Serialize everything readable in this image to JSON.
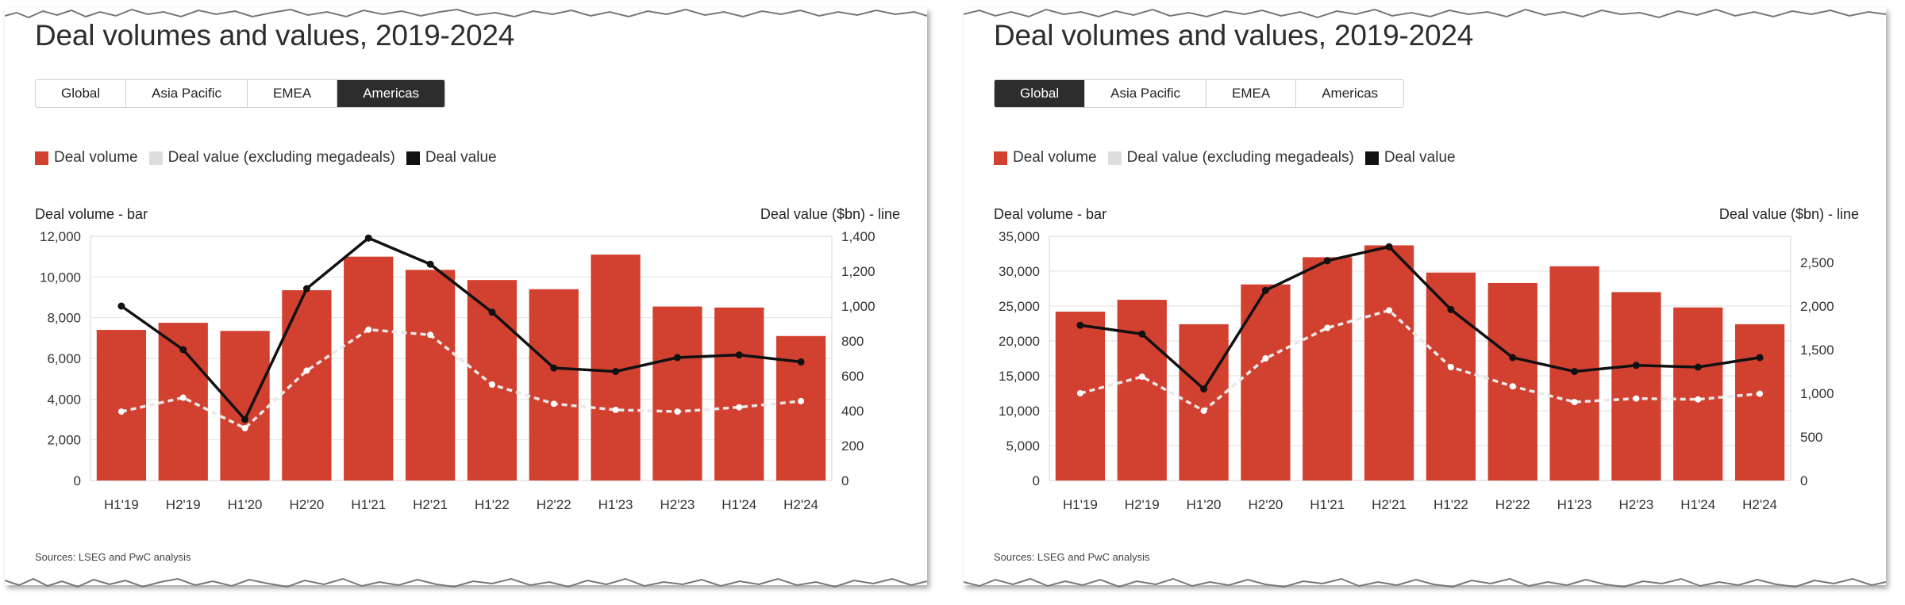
{
  "colors": {
    "bar": "#d24030",
    "line_dark": "#111111",
    "line_light": "#e8e8e8",
    "legend_light": "#dddddd",
    "active_tab": "#2d2d2d"
  },
  "legend": {
    "deal_volume": "Deal volume",
    "deal_value_ex": "Deal value (excluding megadeals)",
    "deal_value": "Deal value"
  },
  "tabs": [
    "Global",
    "Asia Pacific",
    "EMEA",
    "Americas"
  ],
  "panels": [
    {
      "title": "Deal volumes and values, 2019-2024",
      "active_tab": "Americas",
      "left_axis_label": "Deal volume - bar",
      "right_axis_label": "Deal value ($bn) - line",
      "source": "Sources: LSEG and PwC analysis"
    },
    {
      "title": "Deal volumes and values, 2019-2024",
      "active_tab": "Global",
      "left_axis_label": "Deal volume - bar",
      "right_axis_label": "Deal value ($bn) - line",
      "source": "Sources: LSEG and PwC analysis"
    }
  ],
  "chart_data": [
    {
      "type": "bar",
      "title": "Deal volumes and values, 2019-2024",
      "categories": [
        "H1'19",
        "H2'19",
        "H1'20",
        "H2'20",
        "H1'21",
        "H2'21",
        "H1'22",
        "H2'22",
        "H1'23",
        "H2'23",
        "H1'24",
        "H2'24"
      ],
      "ylabel": "Deal volume - bar",
      "y2label": "Deal value ($bn) - line",
      "ylim": [
        0,
        12000
      ],
      "yticks": [
        0,
        2000,
        4000,
        6000,
        8000,
        10000,
        12000
      ],
      "y2lim": [
        0,
        1400
      ],
      "y2ticks": [
        0,
        200,
        400,
        600,
        800,
        1000,
        1200,
        1400
      ],
      "series": [
        {
          "name": "Deal volume",
          "type": "bar",
          "axis": "left",
          "values": [
            7400,
            7750,
            7350,
            9350,
            11000,
            10350,
            9850,
            9400,
            11100,
            8550,
            8500,
            7100
          ]
        },
        {
          "name": "Deal value (excluding megadeals)",
          "type": "line",
          "axis": "right",
          "dashed": true,
          "values": [
            395,
            475,
            300,
            630,
            865,
            835,
            550,
            440,
            405,
            395,
            420,
            455
          ]
        },
        {
          "name": "Deal value",
          "type": "line",
          "axis": "right",
          "values": [
            1000,
            750,
            350,
            1100,
            1390,
            1240,
            965,
            645,
            625,
            705,
            720,
            680
          ]
        }
      ],
      "legend": "top-left",
      "grid": true
    },
    {
      "type": "bar",
      "title": "Deal volumes and values, 2019-2024",
      "categories": [
        "H1'19",
        "H2'19",
        "H1'20",
        "H2'20",
        "H1'21",
        "H2'21",
        "H1'22",
        "H2'22",
        "H1'23",
        "H2'23",
        "H1'24",
        "H2'24"
      ],
      "ylabel": "Deal volume - bar",
      "y2label": "Deal value ($bn) - line",
      "ylim": [
        0,
        35000
      ],
      "yticks": [
        0,
        5000,
        10000,
        15000,
        20000,
        25000,
        30000,
        35000
      ],
      "y2lim": [
        0,
        2800
      ],
      "y2ticks": [
        0,
        500,
        1000,
        1500,
        2000,
        2500
      ],
      "series": [
        {
          "name": "Deal volume",
          "type": "bar",
          "axis": "left",
          "values": [
            24200,
            25900,
            22400,
            28100,
            32000,
            33700,
            29800,
            28300,
            30700,
            27000,
            24800,
            22400
          ]
        },
        {
          "name": "Deal value (excluding megadeals)",
          "type": "line",
          "axis": "right",
          "dashed": true,
          "values": [
            1000,
            1190,
            800,
            1400,
            1750,
            1950,
            1300,
            1080,
            900,
            940,
            930,
            995
          ]
        },
        {
          "name": "Deal value",
          "type": "line",
          "axis": "right",
          "values": [
            1780,
            1680,
            1050,
            2180,
            2520,
            2680,
            1960,
            1410,
            1250,
            1320,
            1300,
            1410
          ]
        }
      ],
      "legend": "top-left",
      "grid": true
    }
  ]
}
